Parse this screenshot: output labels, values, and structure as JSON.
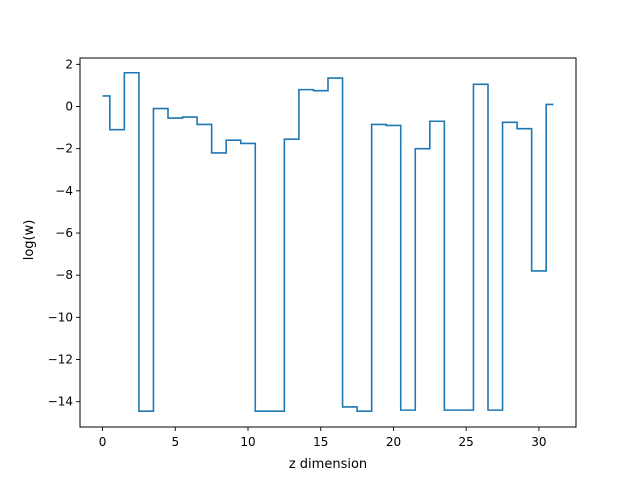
{
  "chart_data": {
    "type": "line",
    "drawstyle": "steps-mid",
    "xlabel": "z dimension",
    "ylabel": "log(w)",
    "xlim": [
      -1.55,
      32.55
    ],
    "ylim": [
      -15.2,
      2.3
    ],
    "xticks": [
      0,
      5,
      10,
      15,
      20,
      25,
      30
    ],
    "xtick_labels": [
      "0",
      "5",
      "10",
      "15",
      "20",
      "25",
      "30"
    ],
    "yticks": [
      2,
      0,
      -2,
      -4,
      -6,
      -8,
      -10,
      -12,
      -14
    ],
    "ytick_labels": [
      "2",
      "0",
      "−2",
      "−4",
      "−6",
      "−8",
      "−10",
      "−12",
      "−14"
    ],
    "grid": false,
    "series": [
      {
        "color": "#1f77b4",
        "x": [
          0,
          1,
          2,
          3,
          4,
          5,
          6,
          7,
          8,
          9,
          10,
          11,
          12,
          13,
          14,
          15,
          16,
          17,
          18,
          19,
          20,
          21,
          22,
          23,
          24,
          25,
          26,
          27,
          28,
          29,
          30,
          31
        ],
        "y": [
          0.5,
          -1.1,
          1.6,
          -14.45,
          -0.1,
          -0.55,
          -0.5,
          -0.85,
          -2.2,
          -1.6,
          -1.75,
          -14.45,
          -14.45,
          -1.55,
          0.8,
          0.75,
          1.35,
          -14.25,
          -14.45,
          -0.85,
          -0.9,
          -14.4,
          -2,
          -0.7,
          -14.4,
          -14.4,
          1.05,
          -14.4,
          -0.75,
          -1.05,
          -7.8,
          0.1
        ]
      }
    ]
  }
}
